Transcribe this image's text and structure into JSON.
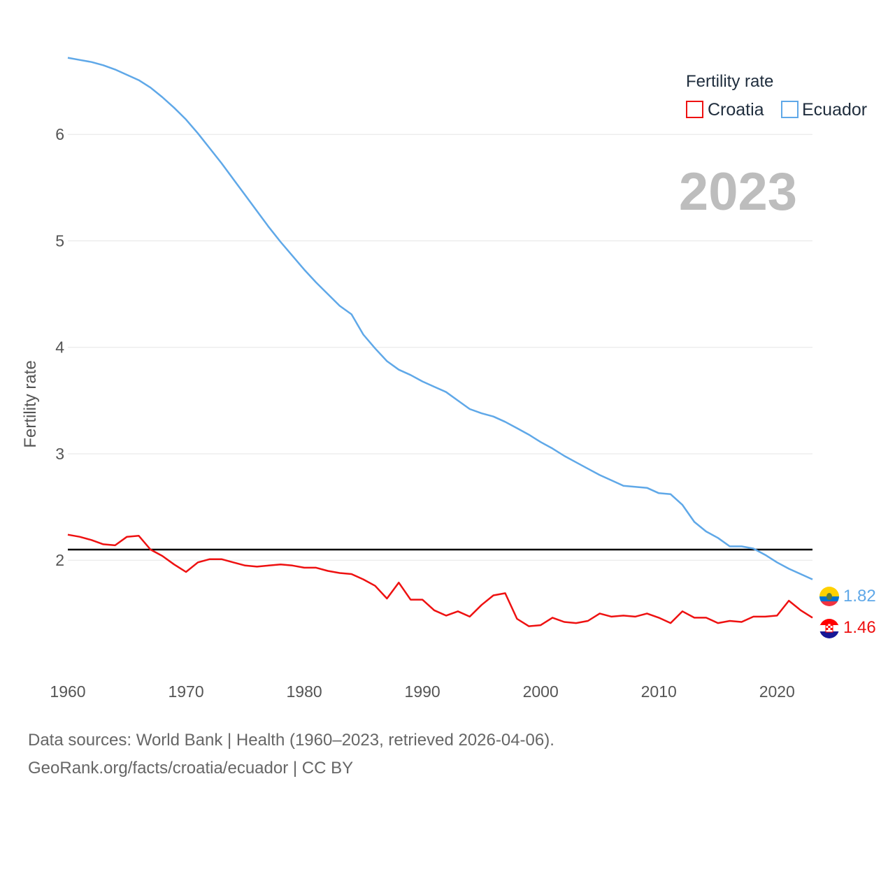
{
  "chart_data": {
    "type": "line",
    "year_label": "2023",
    "ylabel": "Fertility rate",
    "xlim": [
      1960,
      2023
    ],
    "ylim": [
      0.99,
      7.0
    ],
    "yticks": [
      2,
      3,
      4,
      5,
      6
    ],
    "xticks": [
      1960,
      1970,
      1980,
      1990,
      2000,
      2010,
      2020
    ],
    "reference_line": 2.1,
    "legend": {
      "title": "Fertility rate",
      "placement": "top-right"
    },
    "series": [
      {
        "name": "Croatia",
        "color": "#ee1111",
        "end_label": "1.46",
        "flag": "croatia-flag",
        "x": [
          1960,
          1961,
          1962,
          1963,
          1964,
          1965,
          1966,
          1967,
          1968,
          1969,
          1970,
          1971,
          1972,
          1973,
          1974,
          1975,
          1976,
          1977,
          1978,
          1979,
          1980,
          1981,
          1982,
          1983,
          1984,
          1985,
          1986,
          1987,
          1988,
          1989,
          1990,
          1991,
          1992,
          1993,
          1994,
          1995,
          1996,
          1997,
          1998,
          1999,
          2000,
          2001,
          2002,
          2003,
          2004,
          2005,
          2006,
          2007,
          2008,
          2009,
          2010,
          2011,
          2012,
          2013,
          2014,
          2015,
          2016,
          2017,
          2018,
          2019,
          2020,
          2021,
          2022,
          2023
        ],
        "values": [
          2.24,
          2.22,
          2.19,
          2.15,
          2.14,
          2.22,
          2.23,
          2.1,
          2.04,
          1.96,
          1.89,
          1.98,
          2.01,
          2.01,
          1.98,
          1.95,
          1.94,
          1.95,
          1.96,
          1.95,
          1.93,
          1.93,
          1.9,
          1.88,
          1.87,
          1.82,
          1.76,
          1.64,
          1.79,
          1.63,
          1.63,
          1.53,
          1.48,
          1.52,
          1.47,
          1.58,
          1.67,
          1.69,
          1.45,
          1.38,
          1.39,
          1.46,
          1.42,
          1.41,
          1.43,
          1.5,
          1.47,
          1.48,
          1.47,
          1.5,
          1.46,
          1.41,
          1.52,
          1.46,
          1.46,
          1.41,
          1.43,
          1.42,
          1.47,
          1.47,
          1.48,
          1.62,
          1.53,
          1.46
        ]
      },
      {
        "name": "Ecuador",
        "color": "#5fa8e8",
        "end_label": "1.82",
        "flag": "ecuador-flag",
        "x": [
          1960,
          1961,
          1962,
          1963,
          1964,
          1965,
          1966,
          1967,
          1968,
          1969,
          1970,
          1971,
          1972,
          1973,
          1974,
          1975,
          1976,
          1977,
          1978,
          1979,
          1980,
          1981,
          1982,
          1983,
          1984,
          1985,
          1986,
          1987,
          1988,
          1989,
          1990,
          1991,
          1992,
          1993,
          1994,
          1995,
          1996,
          1997,
          1998,
          1999,
          2000,
          2001,
          2002,
          2003,
          2004,
          2005,
          2006,
          2007,
          2008,
          2009,
          2010,
          2011,
          2012,
          2013,
          2014,
          2015,
          2016,
          2017,
          2018,
          2019,
          2020,
          2021,
          2022,
          2023
        ],
        "values": [
          6.72,
          6.7,
          6.68,
          6.65,
          6.61,
          6.56,
          6.51,
          6.44,
          6.35,
          6.25,
          6.14,
          6.01,
          5.87,
          5.73,
          5.58,
          5.43,
          5.28,
          5.13,
          4.99,
          4.86,
          4.73,
          4.61,
          4.5,
          4.39,
          4.31,
          4.12,
          3.99,
          3.87,
          3.79,
          3.74,
          3.68,
          3.63,
          3.58,
          3.5,
          3.42,
          3.38,
          3.35,
          3.3,
          3.24,
          3.18,
          3.11,
          3.05,
          2.98,
          2.92,
          2.86,
          2.8,
          2.75,
          2.7,
          2.69,
          2.68,
          2.63,
          2.62,
          2.52,
          2.36,
          2.27,
          2.21,
          2.13,
          2.13,
          2.11,
          2.05,
          1.98,
          1.92,
          1.87,
          1.82
        ]
      }
    ]
  },
  "source": {
    "line1": "Data sources: World Bank | Health (1960–2023, retrieved 2026-04-06).",
    "line2": "GeoRank.org/facts/croatia/ecuador | CC BY"
  }
}
